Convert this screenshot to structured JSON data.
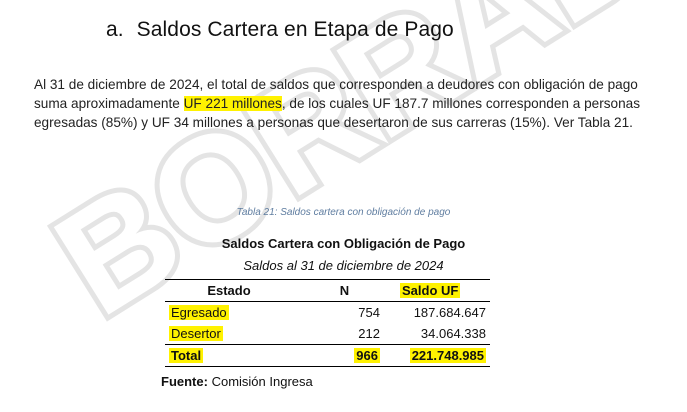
{
  "watermark": "BORRADOR",
  "heading": {
    "number": "a.",
    "text": "Saldos Cartera en Etapa de Pago"
  },
  "paragraph": {
    "part1": "Al 31 de diciembre de 2024, el total de saldos que corresponden a deudores con obligación de pago suma aproximadamente ",
    "highlight": "UF 221 millones",
    "part2": ", de los cuales UF 187.7 millones corresponden a personas egresadas (85%) y UF 34 millones a personas que desertaron de sus carreras (15%). Ver Tabla 21."
  },
  "caption": "Tabla 21: Saldos cartera con obligación de pago",
  "table": {
    "title": "Saldos Cartera con Obligación de Pago",
    "subtitle": "Saldos al 31 de diciembre de 2024",
    "headers": {
      "estado": "Estado",
      "n": "N",
      "saldo": "Saldo UF"
    },
    "rows": [
      {
        "estado": "Egresado",
        "n": "754",
        "saldo": "187.684.647"
      },
      {
        "estado": "Desertor",
        "n": "212",
        "saldo": "34.064.338"
      }
    ],
    "total": {
      "estado": "Total",
      "n": "966",
      "saldo": "221.748.985"
    }
  },
  "fuente": {
    "label": "Fuente:",
    "value": "Comisión Ingresa"
  },
  "colors": {
    "highlight": "#fff200",
    "caption": "#5f7da0",
    "watermark": "#e6e6e6"
  }
}
